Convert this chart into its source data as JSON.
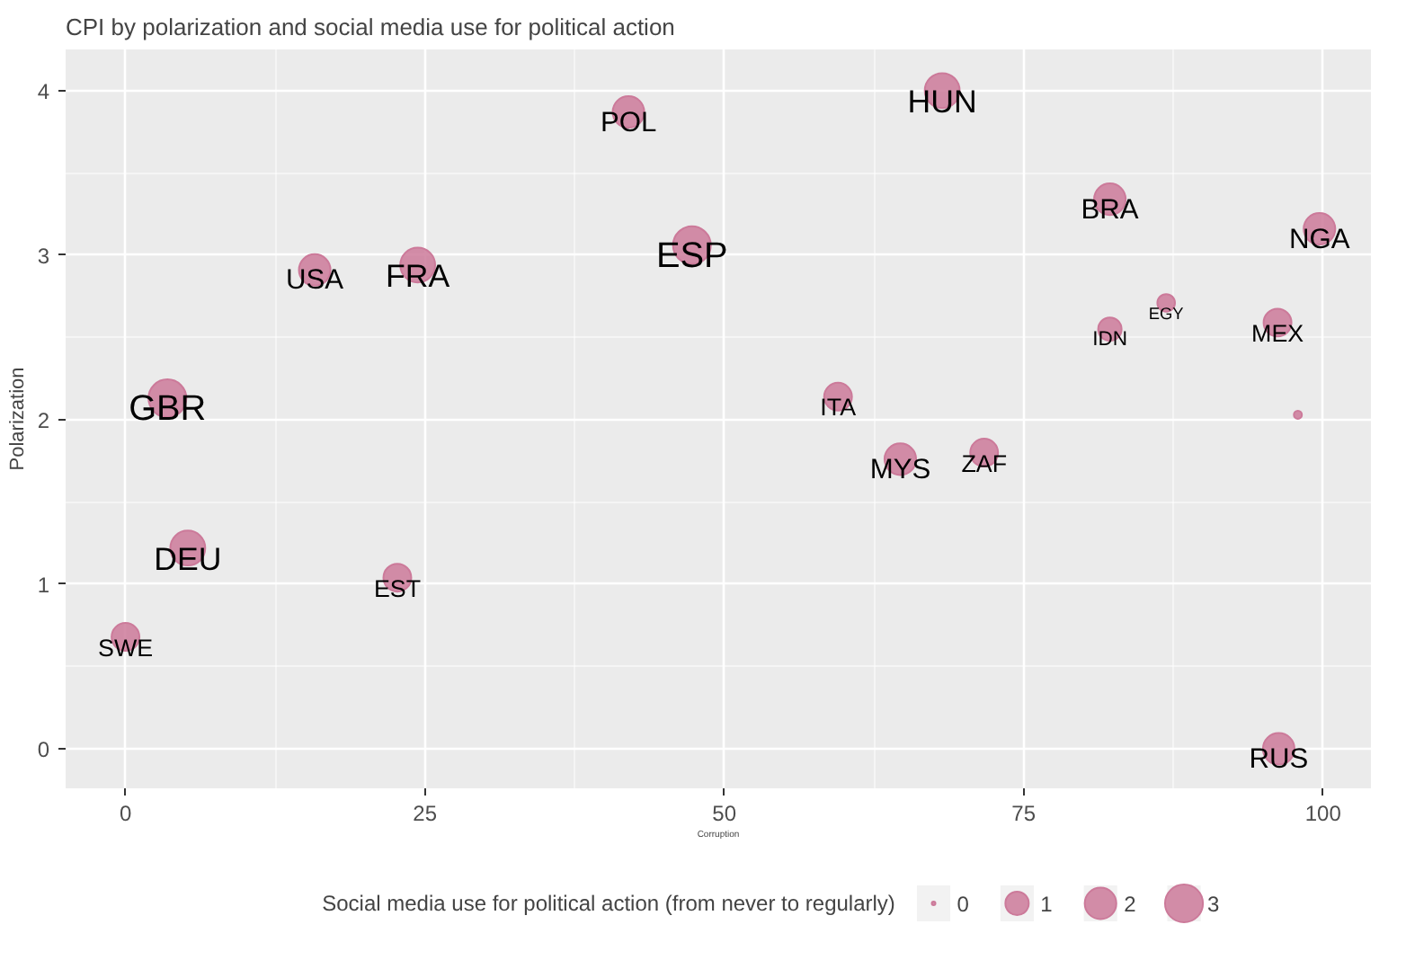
{
  "chart_data": {
    "type": "bubble",
    "title": "CPI by polarization and social media use for political action",
    "xlabel": "Corruption",
    "ylabel": "Polarization",
    "legend_title": "Social media use for political action (from never to regularly)",
    "x": [
      0,
      3.5,
      5.2,
      15.8,
      24.4,
      22.7,
      42.0,
      47.3,
      68.2,
      59.5,
      64.7,
      71.7,
      82.2,
      82.2,
      86.9,
      96.2,
      99.7,
      97.9,
      96.3
    ],
    "values": [
      0.68,
      2.13,
      1.22,
      2.91,
      2.94,
      1.04,
      3.87,
      3.06,
      4.0,
      2.14,
      1.76,
      1.8,
      3.34,
      2.55,
      2.71,
      2.59,
      3.16,
      2.03,
      0.0
    ],
    "sizes": [
      1.5,
      3,
      2.5,
      2,
      2.5,
      1.5,
      2,
      3,
      2.5,
      1.5,
      2,
      1.5,
      2,
      1,
      0.5,
      1.5,
      2,
      0.05,
      2
    ],
    "size_legend": [
      0,
      1,
      2,
      3
    ],
    "annotations": [
      {
        "text": "SWE",
        "x": 0,
        "y": 0.68
      },
      {
        "text": "GBR",
        "x": 3.5,
        "y": 2.13
      },
      {
        "text": "DEU",
        "x": 5.2,
        "y": 1.22
      },
      {
        "text": "USA",
        "x": 15.8,
        "y": 2.91
      },
      {
        "text": "FRA",
        "x": 24.4,
        "y": 2.94
      },
      {
        "text": "EST",
        "x": 22.7,
        "y": 1.04
      },
      {
        "text": "POL",
        "x": 42.0,
        "y": 3.87
      },
      {
        "text": "ESP",
        "x": 47.3,
        "y": 3.06
      },
      {
        "text": "HUN",
        "x": 68.2,
        "y": 4.0
      },
      {
        "text": "ITA",
        "x": 59.5,
        "y": 2.14
      },
      {
        "text": "MYS",
        "x": 64.7,
        "y": 1.76
      },
      {
        "text": "ZAF",
        "x": 71.7,
        "y": 1.8
      },
      {
        "text": "BRA",
        "x": 82.2,
        "y": 3.34
      },
      {
        "text": "IDN",
        "x": 82.2,
        "y": 2.55
      },
      {
        "text": "EGY",
        "x": 86.9,
        "y": 2.71
      },
      {
        "text": "MEX",
        "x": 96.2,
        "y": 2.59
      },
      {
        "text": "NGA",
        "x": 99.7,
        "y": 3.16
      },
      {
        "text": "RUS",
        "x": 96.3,
        "y": 0.0
      }
    ],
    "color": "#cc7a9a",
    "xlim": [
      -5,
      104
    ],
    "ylim": [
      -0.24,
      4.25
    ],
    "xticks": [
      0,
      25,
      50,
      75,
      100
    ],
    "yticks": [
      0,
      1,
      2,
      3,
      4
    ],
    "grid": true
  }
}
